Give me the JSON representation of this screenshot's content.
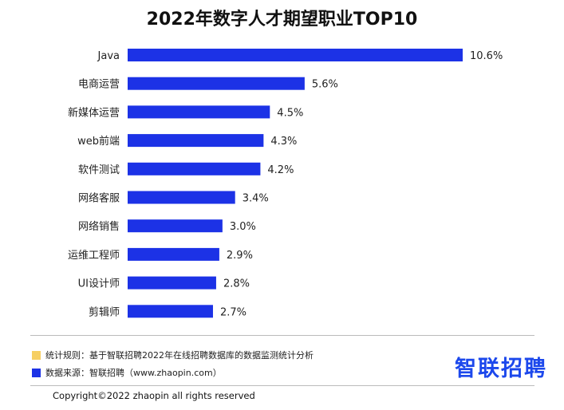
{
  "chart_data": {
    "type": "bar",
    "orientation": "horizontal",
    "title": "2022年数字人才期望职业TOP10",
    "categories": [
      "Java",
      "电商运营",
      "新媒体运营",
      "web前端",
      "软件测试",
      "网络客服",
      "网络销售",
      "运维工程师",
      "UI设计师",
      "剪辑师"
    ],
    "values": [
      10.6,
      5.6,
      4.5,
      4.3,
      4.2,
      3.4,
      3.0,
      2.9,
      2.8,
      2.7
    ],
    "value_labels": [
      "10.6%",
      "5.6%",
      "4.5%",
      "4.3%",
      "4.2%",
      "3.4%",
      "3.0%",
      "2.9%",
      "2.8%",
      "2.7%"
    ],
    "bar_color": "#1c32e6",
    "xlim": [
      0,
      10.6
    ]
  },
  "notes": {
    "rule_text": "统计规则：基于智联招聘2022年在线招聘数据库的数据监测统计分析",
    "rule_color": "#f6cf63",
    "source_text": "数据来源：智联招聘（www.zhaopin.com）",
    "source_color": "#1c32e6"
  },
  "logo": {
    "text": "智联招聘",
    "color": "#1c48ec"
  },
  "copyright": "Copyright©2022 zhaopin all rights reserved"
}
